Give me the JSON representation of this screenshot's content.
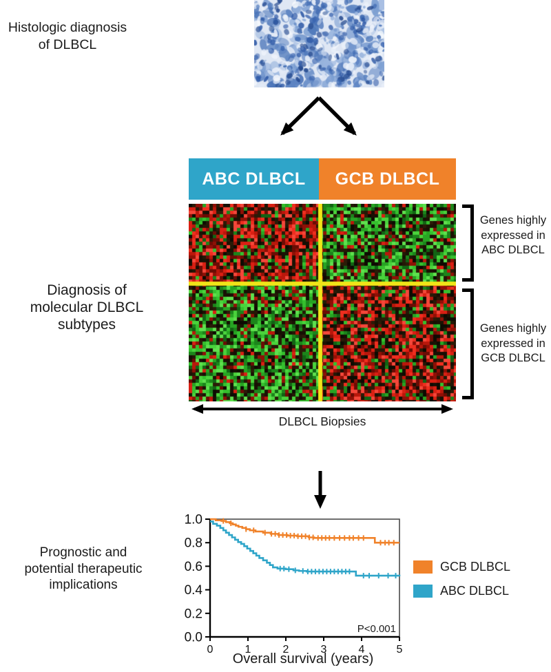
{
  "labels": {
    "histologic": "Histologic diagnosis\nof DLBCL",
    "diagnosis": "Diagnosis of\nmolecular DLBCL\nsubtypes",
    "prognostic": "Prognostic and\npotential therapeutic\nimplications",
    "genes_abc": "Genes highly\nexpressed in\nABC DLBCL",
    "genes_gcb": "Genes highly\nexpressed in\nGCB DLBCL",
    "biopsies": "DLBCL Biopsies"
  },
  "subtype_bar": {
    "abc_label": "ABC DLBCL",
    "gcb_label": "GCB DLBCL",
    "abc_color": "#2FA5C9",
    "gcb_color": "#F0822A"
  },
  "heatmap": {
    "cols": 78,
    "rows": 58,
    "cell": 5,
    "split_col": 38,
    "split_row": 23,
    "seed": 42,
    "divider_color": "#F0E418",
    "quadrant_bias": {
      "top_left": "red",
      "top_right": "green",
      "bottom_left": "green",
      "bottom_right": "red"
    },
    "palettes": {
      "red": [
        "#ef2e1f",
        "#d92013",
        "#b9170b",
        "#8f1006",
        "#6b0c04",
        "#f4473a"
      ],
      "green": [
        "#4ad33c",
        "#35c02e",
        "#27a423",
        "#1c851b",
        "#126314",
        "#5fe04e"
      ],
      "dark": [
        "#170f04",
        "#241806",
        "#0d0b02",
        "#2b1c08",
        "#1b1204"
      ]
    },
    "weights": {
      "main": 0.54,
      "dark": 0.32,
      "other": 0.14
    }
  },
  "histology": {
    "seed": 7,
    "bg": "#dfe7f4",
    "mid": [
      "#9ab5de",
      "#7d9fd2",
      "#5d84c2",
      "#4a74b8"
    ],
    "light": [
      "#eef3fb",
      "#e4ebf7",
      "#f5f8fd"
    ],
    "dark": [
      "#2d58a6",
      "#3b66b0",
      "#24498f"
    ]
  },
  "chart_data": {
    "type": "line",
    "subtype": "kaplan-meier-step",
    "xlabel": "Overall survival (years)",
    "ylabel": "",
    "xlim": [
      0,
      5
    ],
    "ylim": [
      0.0,
      1.0
    ],
    "xticks": [
      "0",
      "1",
      "2",
      "3",
      "4",
      "5"
    ],
    "yticks": [
      "1.0",
      "0.8",
      "0.6",
      "0.4",
      "0.2",
      "0.0"
    ],
    "ytick_values": [
      1.0,
      0.8,
      0.6,
      0.4,
      0.2,
      0.0
    ],
    "xtick_values": [
      0,
      1,
      2,
      3,
      4,
      5
    ],
    "annotation": "P<0.001",
    "grid": false,
    "legend_position": "right-outside",
    "legend": [
      {
        "name": "GCB DLBCL",
        "color": "#F0822A"
      },
      {
        "name": "ABC DLBCL",
        "color": "#2FA5C9"
      }
    ],
    "series": [
      {
        "name": "GCB DLBCL",
        "color": "#F0822A",
        "points": [
          [
            0,
            1.0
          ],
          [
            0.15,
            0.99
          ],
          [
            0.3,
            0.985
          ],
          [
            0.42,
            0.975
          ],
          [
            0.52,
            0.965
          ],
          [
            0.6,
            0.955
          ],
          [
            0.68,
            0.945
          ],
          [
            0.75,
            0.935
          ],
          [
            0.85,
            0.925
          ],
          [
            0.95,
            0.915
          ],
          [
            1.05,
            0.905
          ],
          [
            1.2,
            0.895
          ],
          [
            1.4,
            0.885
          ],
          [
            1.6,
            0.875
          ],
          [
            1.8,
            0.865
          ],
          [
            2.05,
            0.86
          ],
          [
            2.3,
            0.855
          ],
          [
            2.6,
            0.845
          ],
          [
            2.75,
            0.84
          ],
          [
            4.35,
            0.8
          ],
          [
            5.0,
            0.8
          ]
        ],
        "censor_ticks": [
          0.35,
          0.55,
          0.95,
          1.15,
          1.45,
          1.62,
          1.72,
          1.82,
          1.92,
          2.02,
          2.12,
          2.22,
          2.32,
          2.42,
          2.52,
          2.62,
          2.72,
          2.85,
          2.95,
          3.05,
          3.15,
          3.28,
          3.42,
          3.55,
          3.68,
          3.78,
          3.92,
          4.05,
          4.5,
          4.62,
          4.72,
          4.85
        ]
      },
      {
        "name": "ABC DLBCL",
        "color": "#2FA5C9",
        "points": [
          [
            0,
            0.98
          ],
          [
            0.08,
            0.96
          ],
          [
            0.18,
            0.945
          ],
          [
            0.27,
            0.925
          ],
          [
            0.35,
            0.905
          ],
          [
            0.42,
            0.885
          ],
          [
            0.5,
            0.865
          ],
          [
            0.58,
            0.845
          ],
          [
            0.66,
            0.825
          ],
          [
            0.74,
            0.805
          ],
          [
            0.82,
            0.79
          ],
          [
            0.9,
            0.77
          ],
          [
            0.98,
            0.75
          ],
          [
            1.06,
            0.73
          ],
          [
            1.14,
            0.71
          ],
          [
            1.22,
            0.69
          ],
          [
            1.3,
            0.67
          ],
          [
            1.4,
            0.65
          ],
          [
            1.5,
            0.63
          ],
          [
            1.58,
            0.61
          ],
          [
            1.66,
            0.59
          ],
          [
            1.78,
            0.58
          ],
          [
            2.0,
            0.575
          ],
          [
            2.2,
            0.565
          ],
          [
            2.35,
            0.56
          ],
          [
            2.55,
            0.555
          ],
          [
            3.85,
            0.52
          ],
          [
            5.0,
            0.515
          ]
        ],
        "censor_ticks": [
          1.85,
          1.95,
          2.08,
          2.25,
          2.45,
          2.58,
          2.68,
          2.78,
          2.88,
          2.98,
          3.08,
          3.18,
          3.28,
          3.38,
          3.48,
          3.58,
          3.68,
          4.05,
          4.2,
          4.45,
          4.7,
          4.9
        ]
      }
    ]
  }
}
